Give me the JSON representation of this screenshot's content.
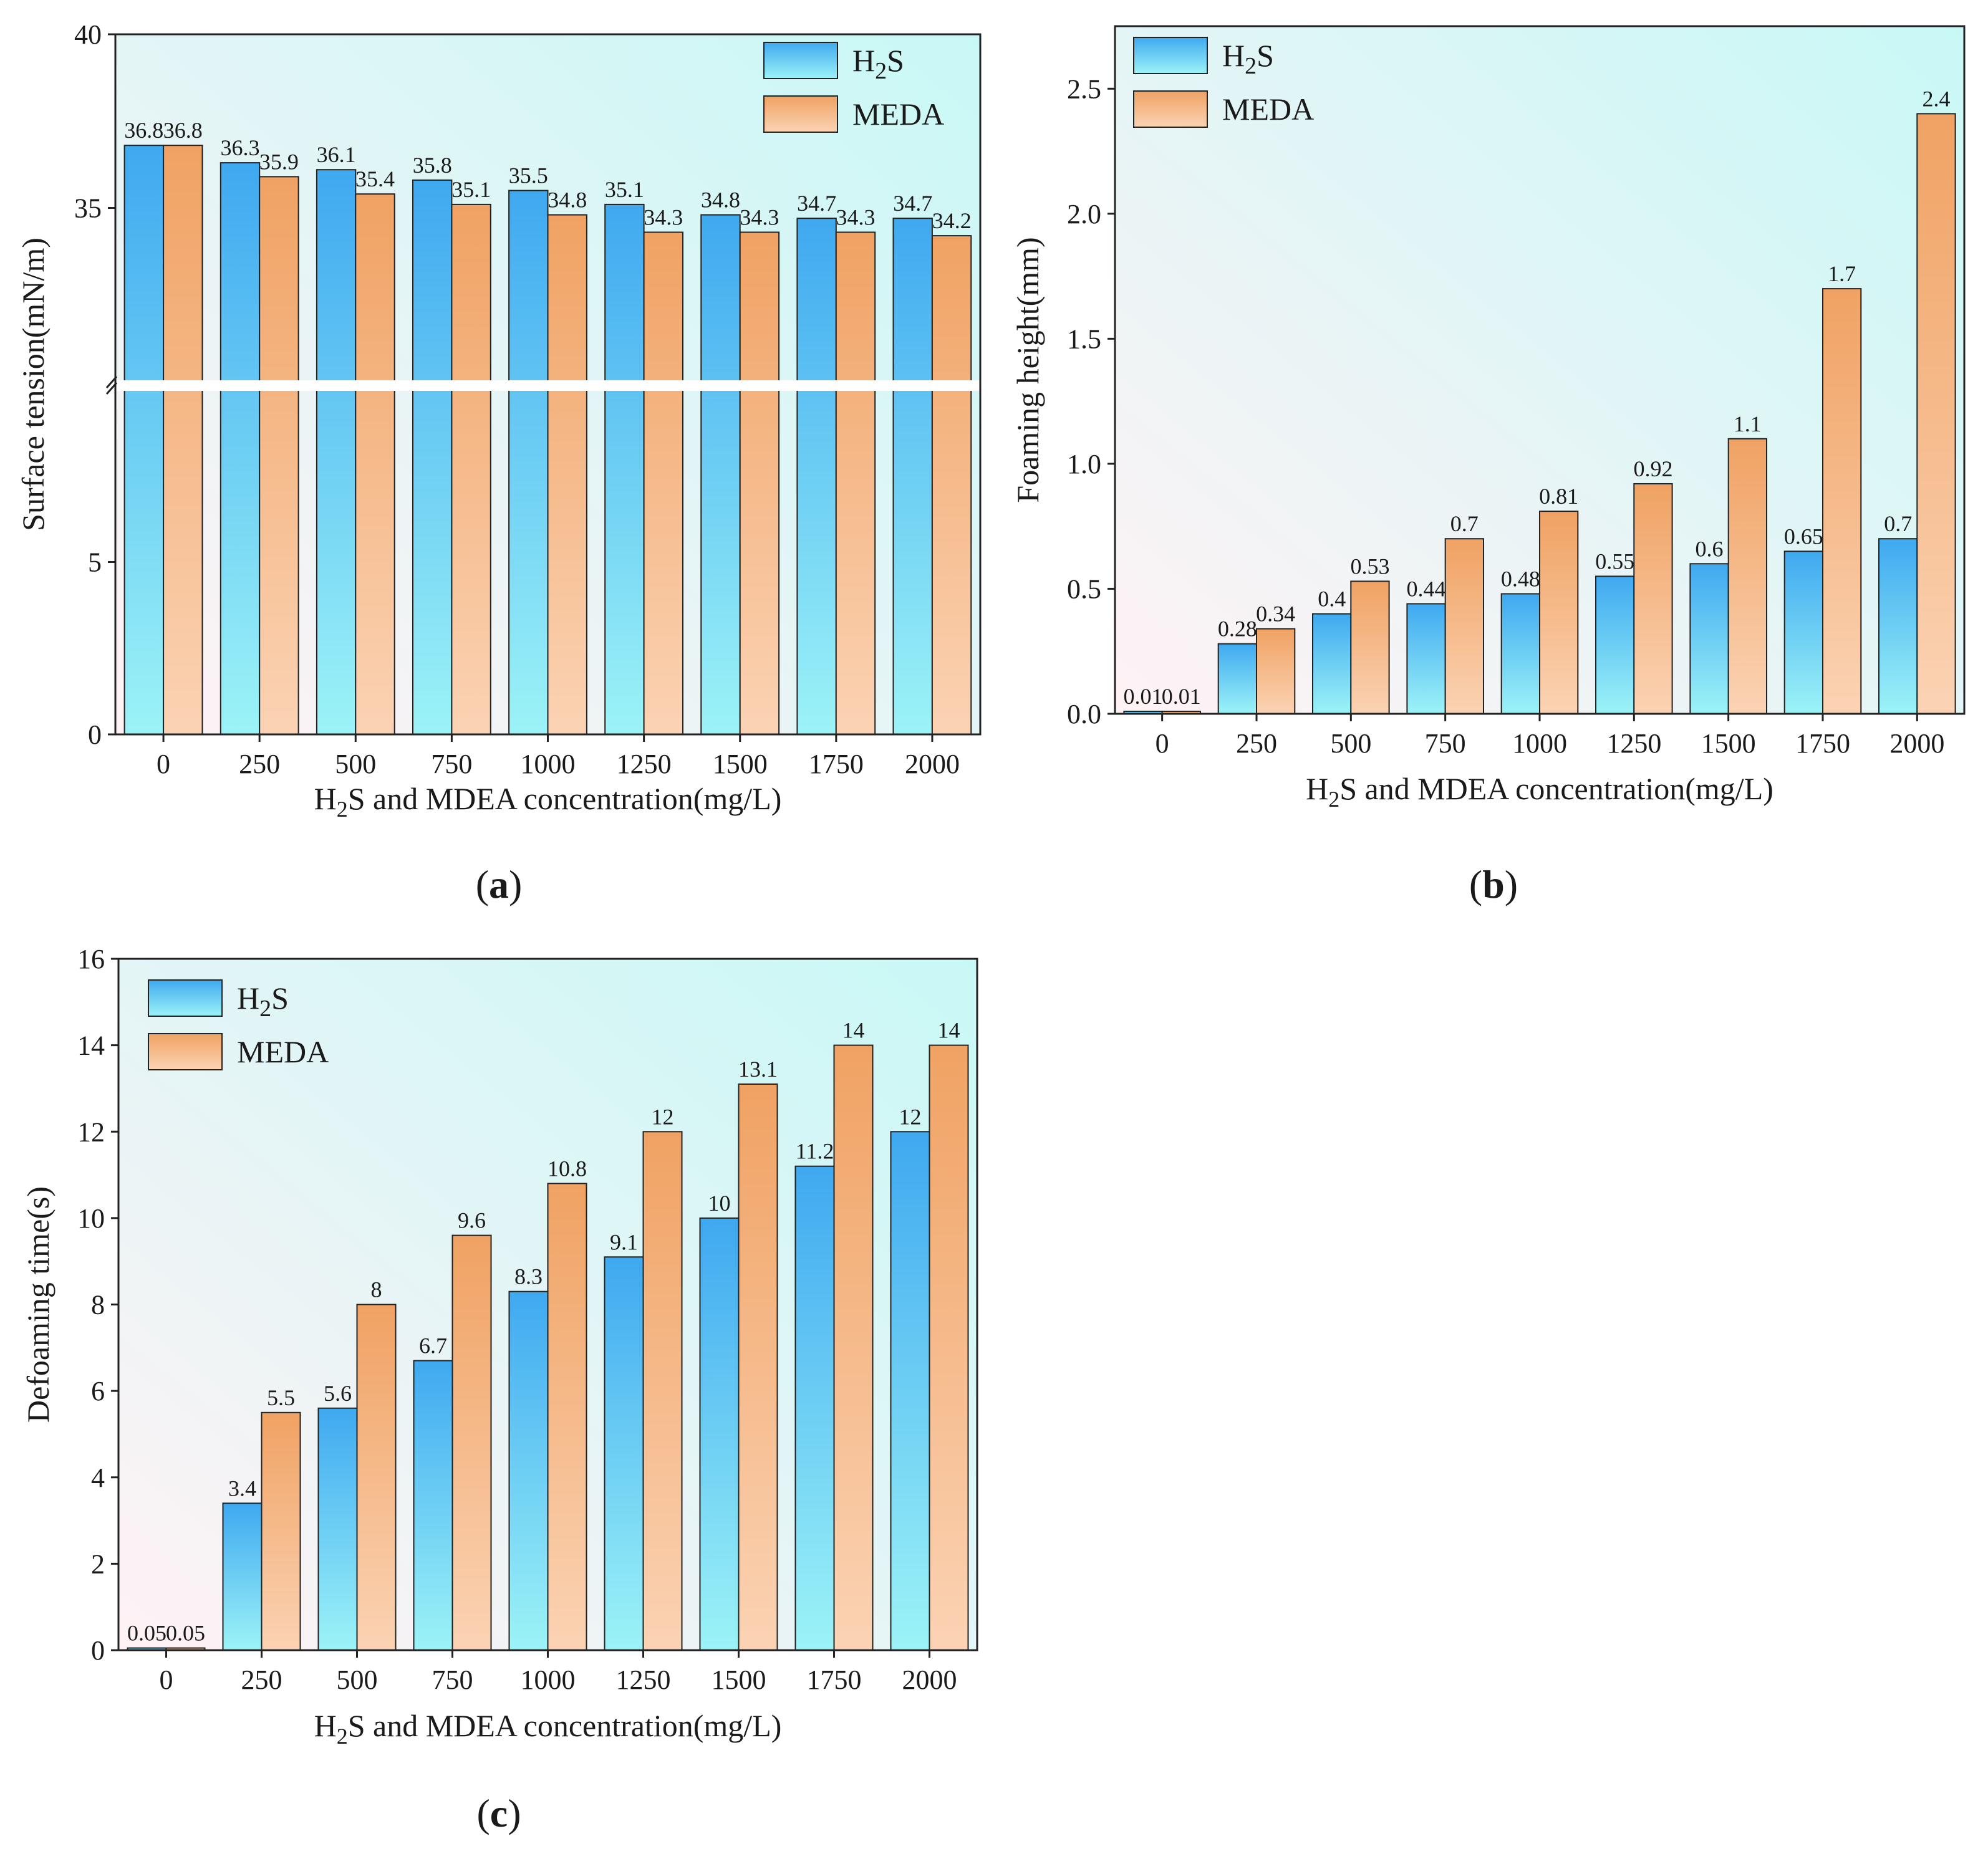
{
  "figure": {
    "panels": [
      "a",
      "b",
      "c"
    ]
  },
  "colors": {
    "h2s_top": "#3fa9f0",
    "h2s_bottom": "#9cf3f7",
    "meda_top": "#f0a263",
    "meda_bottom": "#fbd3b4",
    "plot_bg_a": "#fff2f5",
    "plot_bg_b": "#c8f8f6",
    "axis": "#222222"
  },
  "chart_data": [
    {
      "id": "a",
      "type": "bar",
      "panel_label": "a",
      "ylabel": "Surface tension(mN/m)",
      "xlabel_prefix": "H",
      "xlabel_sub": "2",
      "xlabel_suffix": "S and MDEA concentration(mg/L)",
      "categories": [
        "0",
        "250",
        "500",
        "750",
        "1000",
        "1250",
        "1500",
        "1750",
        "2000"
      ],
      "y_broken": true,
      "ylim_lower": [
        0,
        10
      ],
      "ylim_upper": [
        30,
        40
      ],
      "yticks_lower": [
        0,
        5
      ],
      "yticks_upper": [
        35,
        40
      ],
      "series": [
        {
          "name_main": "H",
          "name_sub": "2",
          "name_tail": "S",
          "color_key": "h2s",
          "values": [
            36.8,
            36.3,
            36.1,
            35.8,
            35.5,
            35.1,
            34.8,
            34.7,
            34.7
          ],
          "labels": [
            "36.8",
            "36.3",
            "36.1",
            "35.8",
            "35.5",
            "35.1",
            "34.8",
            "34.7",
            "34.7"
          ]
        },
        {
          "name_main": "MEDA",
          "name_sub": "",
          "name_tail": "",
          "color_key": "meda",
          "values": [
            36.8,
            35.9,
            35.4,
            35.1,
            34.8,
            34.3,
            34.3,
            34.3,
            34.2
          ],
          "labels": [
            "36.8",
            "35.9",
            "35.4",
            "35.1",
            "34.8",
            "34.3",
            "34.3",
            "34.3",
            "34.2"
          ]
        }
      ],
      "legend": "top-right"
    },
    {
      "id": "b",
      "type": "bar",
      "panel_label": "b",
      "ylabel": "Foaming height(mm)",
      "xlabel_prefix": "H",
      "xlabel_sub": "2",
      "xlabel_suffix": "S and MDEA concentration(mg/L)",
      "categories": [
        "0",
        "250",
        "500",
        "750",
        "1000",
        "1250",
        "1500",
        "1750",
        "2000"
      ],
      "ylim": [
        0,
        2.75
      ],
      "yticks": [
        "0.0",
        "0.5",
        "1.0",
        "1.5",
        "2.0",
        "2.5"
      ],
      "series": [
        {
          "name_main": "H",
          "name_sub": "2",
          "name_tail": "S",
          "color_key": "h2s",
          "values": [
            0.01,
            0.28,
            0.4,
            0.44,
            0.48,
            0.55,
            0.6,
            0.65,
            0.7
          ],
          "labels": [
            "0.01",
            "0.28",
            "0.4",
            "0.44",
            "0.48",
            "0.55",
            "0.6",
            "0.65",
            "0.7"
          ]
        },
        {
          "name_main": "MEDA",
          "name_sub": "",
          "name_tail": "",
          "color_key": "meda",
          "values": [
            0.01,
            0.34,
            0.53,
            0.7,
            0.81,
            0.92,
            1.1,
            1.7,
            2.4
          ],
          "labels": [
            "0.01",
            "0.34",
            "0.53",
            "0.7",
            "0.81",
            "0.92",
            "1.1",
            "1.7",
            "2.4"
          ]
        }
      ],
      "legend": "top-left"
    },
    {
      "id": "c",
      "type": "bar",
      "panel_label": "c",
      "ylabel": "Defoaming time(s)",
      "xlabel_prefix": "H",
      "xlabel_sub": "2",
      "xlabel_suffix": "S and MDEA concentration(mg/L)",
      "categories": [
        "0",
        "250",
        "500",
        "750",
        "1000",
        "1250",
        "1500",
        "1750",
        "2000"
      ],
      "ylim": [
        0,
        16
      ],
      "yticks": [
        "0",
        "2",
        "4",
        "6",
        "8",
        "10",
        "12",
        "14",
        "16"
      ],
      "series": [
        {
          "name_main": "H",
          "name_sub": "2",
          "name_tail": "S",
          "color_key": "h2s",
          "values": [
            0.05,
            3.4,
            5.6,
            6.7,
            8.3,
            9.1,
            10,
            11.2,
            12
          ],
          "labels": [
            "0.05",
            "3.4",
            "5.6",
            "6.7",
            "8.3",
            "9.1",
            "10",
            "11.2",
            "12"
          ]
        },
        {
          "name_main": "MEDA",
          "name_sub": "",
          "name_tail": "",
          "color_key": "meda",
          "values": [
            0.05,
            5.5,
            8,
            9.6,
            10.8,
            12,
            13.1,
            14,
            14
          ],
          "labels": [
            "0.05",
            "5.5",
            "8",
            "9.6",
            "10.8",
            "12",
            "13.1",
            "14",
            "14"
          ]
        }
      ],
      "legend": "top-left"
    }
  ]
}
